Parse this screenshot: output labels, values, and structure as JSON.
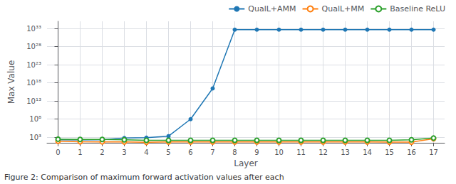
{
  "chart_data": {
    "type": "line",
    "x": [
      0,
      1,
      2,
      3,
      4,
      5,
      6,
      7,
      8,
      9,
      10,
      11,
      12,
      13,
      14,
      15,
      16,
      17
    ],
    "series": [
      {
        "name": "QualL+AMM",
        "color": "#1f77b4",
        "marker": "circle",
        "values": [
          200,
          180,
          200,
          600,
          800,
          2000,
          100000000.0,
          3e+16,
          5e+32,
          5e+32,
          5e+32,
          5e+32,
          5e+32,
          5e+32,
          5e+32,
          5e+32,
          5e+32,
          5e+32
        ]
      },
      {
        "name": "QualL+MM",
        "color": "#ff7f0e",
        "marker": "open_circle",
        "values": [
          80,
          60,
          55,
          50,
          40,
          50,
          50,
          50,
          50,
          50,
          50,
          50,
          50,
          50,
          50,
          45,
          45,
          400
        ]
      },
      {
        "name": "Baseline ReLU",
        "color": "#2ca02c",
        "marker": "open_circle",
        "values": [
          300,
          250,
          250,
          200,
          150,
          150,
          150,
          150,
          150,
          150,
          150,
          150,
          150,
          150,
          150,
          150,
          200,
          600
        ]
      }
    ],
    "xlabel": "Layer",
    "ylabel": "Max Value",
    "caption": "Figure 2: Comparison of maximum forward activation values after each",
    "xlim": [
      -0.5,
      17.5
    ],
    "xticks": [
      0,
      1,
      2,
      3,
      4,
      5,
      6,
      7,
      8,
      9,
      10,
      11,
      12,
      13,
      14,
      15,
      16,
      17
    ],
    "ylim": [
      30,
      1e+35
    ],
    "yticks": [
      {
        "value": 1000.0,
        "label": "10³"
      },
      {
        "value": 100000000.0,
        "label": "10⁸"
      },
      {
        "value": 10000000000000.0,
        "label": "10¹³"
      },
      {
        "value": 1e+18,
        "label": "10¹⁸"
      },
      {
        "value": 1e+23,
        "label": "10²³"
      },
      {
        "value": 1e+28,
        "label": "10²⁸"
      },
      {
        "value": 1e+33,
        "label": "10³³"
      }
    ],
    "log": "y",
    "grid": true,
    "legend": "upper right"
  }
}
